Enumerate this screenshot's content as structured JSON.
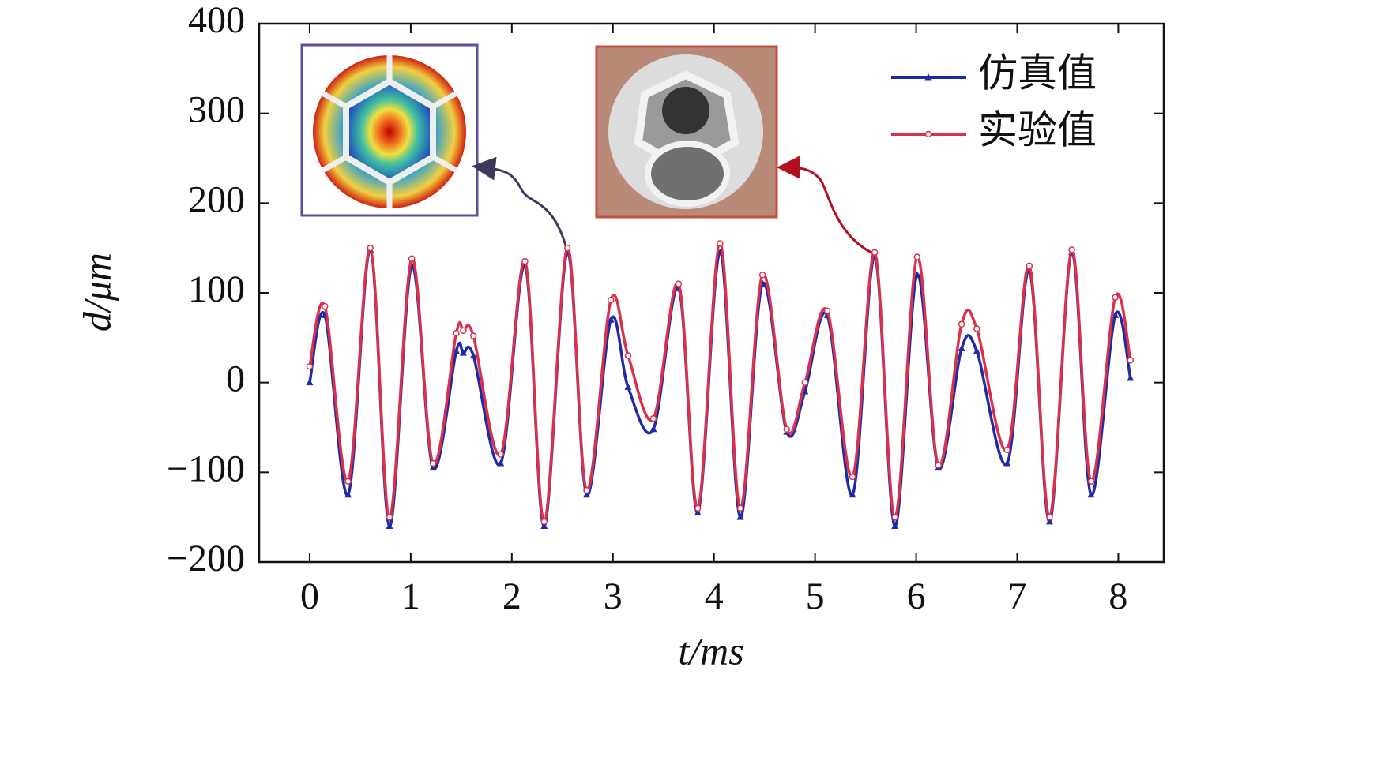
{
  "chart_data": {
    "type": "line",
    "x_label": "t/ms",
    "y_label": "d/μm",
    "x": [
      0,
      0.15,
      0.38,
      0.6,
      0.79,
      1.01,
      1.22,
      1.45,
      1.52,
      1.62,
      1.89,
      2.13,
      2.32,
      2.55,
      2.74,
      2.98,
      3.15,
      3.4,
      3.65,
      3.84,
      4.06,
      4.26,
      4.48,
      4.72,
      4.9,
      5.12,
      5.37,
      5.59,
      5.79,
      6.01,
      6.22,
      6.45,
      6.6,
      6.9,
      7.12,
      7.32,
      7.54,
      7.73,
      7.97,
      8.12
    ],
    "series": [
      {
        "name": "仿真值",
        "color": "#1f2ba6",
        "marker": "triangle",
        "values": [
          0,
          75,
          -125,
          148,
          -160,
          130,
          -95,
          35,
          33,
          30,
          -90,
          130,
          -160,
          145,
          -125,
          70,
          -5,
          -52,
          105,
          -145,
          145,
          -150,
          110,
          -55,
          -10,
          75,
          -125,
          140,
          -160,
          120,
          -95,
          38,
          35,
          -90,
          125,
          -155,
          145,
          -125,
          75,
          5
        ]
      },
      {
        "name": "实验值",
        "color": "#d9314b",
        "marker": "circle",
        "values": [
          18,
          85,
          -110,
          150,
          -150,
          138,
          -90,
          55,
          58,
          52,
          -80,
          135,
          -155,
          150,
          -120,
          92,
          30,
          -40,
          110,
          -140,
          155,
          -140,
          120,
          -52,
          0,
          80,
          -105,
          145,
          -150,
          140,
          -92,
          65,
          60,
          -75,
          130,
          -150,
          148,
          -110,
          95,
          25
        ]
      }
    ],
    "xlim": [
      -0.5,
      8.45
    ],
    "ylim": [
      -200,
      400
    ],
    "xticks": [
      0,
      1,
      2,
      3,
      4,
      5,
      6,
      7,
      8
    ],
    "yticks": [
      {
        "value": -200,
        "label": "−200"
      },
      {
        "value": -100,
        "label": "−100"
      },
      0,
      100,
      200,
      300,
      400
    ],
    "legend": "upper right"
  }
}
